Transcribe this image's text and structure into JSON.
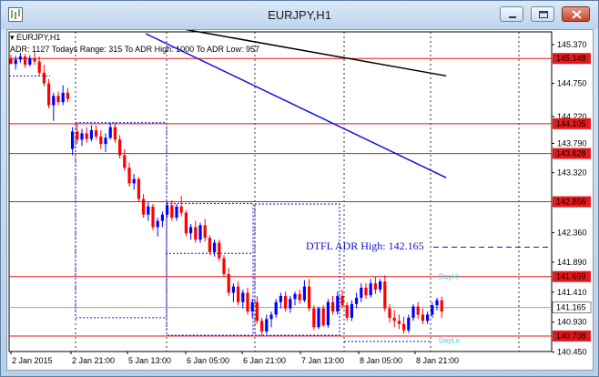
{
  "window": {
    "title": "EURJPY,H1",
    "min_icon": "minimize-icon",
    "max_icon": "maximize-icon",
    "close_icon": "close-icon"
  },
  "chart_header": {
    "symbol": "EURJPY,H1",
    "adr_info": "ADR: 1127  Todays Range: 315  To ADR High: 1000  To ADR Low: 957"
  },
  "colors": {
    "bull": "#0000ff",
    "bear": "#ff0000",
    "level_line": "#e01818",
    "trend_black": "#000000",
    "trend_blue": "#1010e0",
    "label_red_bg": "#e8171a",
    "label_gray_bg": "#ffffff",
    "cyan": "#40c8e8"
  },
  "chart_data": {
    "type": "candlestick",
    "ylim": [
      140.46,
      145.37
    ],
    "y_ticks": [
      "145.370",
      "144.750",
      "144.220",
      "143.790",
      "143.320",
      "142.360",
      "141.890",
      "141.410",
      "140.930",
      "140.450"
    ],
    "x_ticks": [
      "2 Jan 2015",
      "2 Jan 21:00",
      "5 Jan 13:00",
      "6 Jan 05:00",
      "6 Jan 21:00",
      "7 Jan 13:00",
      "8 Jan 05:00",
      "8 Jan 21:00"
    ],
    "levels": [
      {
        "value": 145.148,
        "label": "145.148"
      },
      {
        "value": 144.105,
        "label": "144.105"
      },
      {
        "value": 143.628,
        "label": "143.628"
      },
      {
        "value": 142.856,
        "label": "142.856"
      },
      {
        "value": 141.659,
        "label": "141.659"
      },
      {
        "value": 140.708,
        "label": "140.708"
      }
    ],
    "current_price": {
      "value": 141.165,
      "label": "141.165"
    },
    "annotations": {
      "dtfl": "DTFL ADR High: 142.165",
      "dayhi": "DayHi",
      "daylo": "DayLo"
    },
    "candles": [
      [
        145.15,
        145.21,
        145.09,
        145.06
      ],
      [
        145.06,
        145.19,
        144.97,
        145.13
      ],
      [
        145.13,
        145.24,
        145.08,
        145.18
      ],
      [
        145.18,
        145.22,
        145.0,
        145.05
      ],
      [
        145.05,
        145.2,
        145.02,
        145.15
      ],
      [
        145.15,
        145.25,
        145.05,
        145.1
      ],
      [
        145.1,
        145.18,
        144.88,
        144.92
      ],
      [
        144.92,
        145.05,
        144.7,
        144.75
      ],
      [
        144.75,
        144.82,
        144.35,
        144.4
      ],
      [
        144.4,
        144.6,
        144.15,
        144.55
      ],
      [
        144.55,
        144.62,
        144.4,
        144.45
      ],
      [
        144.45,
        144.72,
        144.4,
        144.6
      ],
      [
        144.6,
        144.68,
        144.45,
        144.5
      ],
      [
        143.7,
        144.05,
        143.6,
        143.98
      ],
      [
        143.98,
        144.1,
        143.78,
        143.85
      ],
      [
        143.85,
        144.02,
        143.75,
        143.95
      ],
      [
        143.95,
        144.05,
        143.8,
        143.86
      ],
      [
        143.86,
        144.08,
        143.82,
        144.0
      ],
      [
        144.0,
        144.08,
        143.85,
        143.9
      ],
      [
        143.9,
        144.0,
        143.7,
        143.78
      ],
      [
        143.78,
        143.95,
        143.65,
        143.88
      ],
      [
        143.88,
        144.12,
        143.85,
        144.05
      ],
      [
        144.05,
        144.12,
        143.8,
        143.85
      ],
      [
        143.85,
        143.92,
        143.55,
        143.6
      ],
      [
        143.6,
        143.7,
        143.35,
        143.4
      ],
      [
        143.4,
        143.48,
        143.1,
        143.15
      ],
      [
        143.15,
        143.3,
        143.05,
        143.22
      ],
      [
        143.22,
        143.25,
        142.85,
        142.9
      ],
      [
        142.9,
        142.98,
        142.6,
        142.65
      ],
      [
        142.65,
        142.85,
        142.55,
        142.78
      ],
      [
        142.78,
        142.82,
        142.4,
        142.45
      ],
      [
        142.45,
        142.6,
        142.3,
        142.55
      ],
      [
        142.55,
        142.7,
        142.45,
        142.65
      ],
      [
        142.65,
        142.85,
        142.6,
        142.8
      ],
      [
        142.8,
        142.88,
        142.55,
        142.6
      ],
      [
        142.6,
        142.82,
        142.55,
        142.78
      ],
      [
        142.78,
        142.95,
        142.62,
        142.68
      ],
      [
        142.68,
        142.72,
        142.3,
        142.35
      ],
      [
        142.35,
        142.5,
        142.25,
        142.45
      ],
      [
        142.45,
        142.55,
        142.2,
        142.25
      ],
      [
        142.25,
        142.52,
        142.2,
        142.48
      ],
      [
        142.48,
        142.58,
        142.22,
        142.28
      ],
      [
        142.28,
        142.32,
        142.0,
        142.05
      ],
      [
        142.05,
        142.25,
        141.98,
        142.2
      ],
      [
        142.2,
        142.25,
        141.9,
        141.95
      ],
      [
        141.95,
        142.0,
        141.65,
        141.7
      ],
      [
        141.7,
        141.8,
        141.35,
        141.4
      ],
      [
        141.4,
        141.55,
        141.25,
        141.5
      ],
      [
        141.5,
        141.58,
        141.2,
        141.25
      ],
      [
        141.25,
        141.45,
        141.15,
        141.4
      ],
      [
        141.4,
        141.48,
        141.05,
        141.1
      ],
      [
        141.1,
        141.3,
        141.0,
        141.25
      ],
      [
        141.25,
        141.35,
        140.9,
        140.95
      ],
      [
        140.95,
        141.0,
        140.72,
        140.78
      ],
      [
        140.78,
        141.05,
        140.74,
        140.98
      ],
      [
        140.98,
        141.1,
        140.85,
        141.05
      ],
      [
        141.05,
        141.3,
        141.0,
        141.25
      ],
      [
        141.25,
        141.4,
        141.15,
        141.35
      ],
      [
        141.35,
        141.42,
        141.1,
        141.15
      ],
      [
        141.15,
        141.35,
        141.08,
        141.3
      ],
      [
        141.3,
        141.42,
        141.2,
        141.38
      ],
      [
        141.38,
        141.45,
        141.22,
        141.28
      ],
      [
        141.28,
        141.6,
        141.25,
        141.5
      ],
      [
        141.5,
        141.62,
        141.1,
        141.15
      ],
      [
        141.15,
        141.2,
        140.8,
        140.85
      ],
      [
        140.85,
        141.18,
        140.82,
        141.15
      ],
      [
        141.15,
        141.2,
        140.85,
        140.88
      ],
      [
        140.88,
        141.3,
        140.84,
        141.25
      ],
      [
        141.25,
        141.35,
        141.05,
        141.1
      ],
      [
        141.1,
        141.42,
        141.05,
        141.35
      ],
      [
        141.35,
        141.45,
        141.15,
        141.2
      ],
      [
        141.2,
        141.25,
        140.95,
        141.0
      ],
      [
        141.0,
        141.28,
        140.95,
        141.22
      ],
      [
        141.22,
        141.4,
        141.15,
        141.32
      ],
      [
        141.32,
        141.55,
        141.25,
        141.48
      ],
      [
        141.48,
        141.55,
        141.3,
        141.36
      ],
      [
        141.36,
        141.62,
        141.32,
        141.55
      ],
      [
        141.55,
        141.65,
        141.38,
        141.45
      ],
      [
        141.45,
        141.62,
        141.4,
        141.58
      ],
      [
        141.58,
        141.68,
        141.1,
        141.15
      ],
      [
        141.15,
        141.22,
        140.92,
        141.0
      ],
      [
        141.0,
        141.12,
        140.85,
        140.95
      ],
      [
        140.95,
        141.05,
        140.82,
        140.9
      ],
      [
        140.9,
        141.02,
        140.75,
        140.8
      ],
      [
        140.8,
        141.05,
        140.76,
        141.0
      ],
      [
        141.0,
        141.22,
        140.95,
        141.18
      ],
      [
        141.18,
        141.25,
        140.98,
        141.05
      ],
      [
        141.05,
        141.15,
        140.9,
        140.95
      ],
      [
        140.95,
        141.1,
        140.9,
        141.05
      ],
      [
        141.05,
        141.25,
        141.0,
        141.2
      ],
      [
        141.2,
        141.32,
        141.12,
        141.28
      ],
      [
        141.28,
        141.34,
        141.0,
        141.1
      ]
    ],
    "trend_lines": [
      {
        "color": "black",
        "from": [
          41,
          145.55
        ],
        "to": [
          91,
          144.87
        ]
      },
      {
        "color": "blue",
        "from": [
          41,
          145.37
        ],
        "to": [
          91,
          143.24
        ]
      }
    ]
  }
}
